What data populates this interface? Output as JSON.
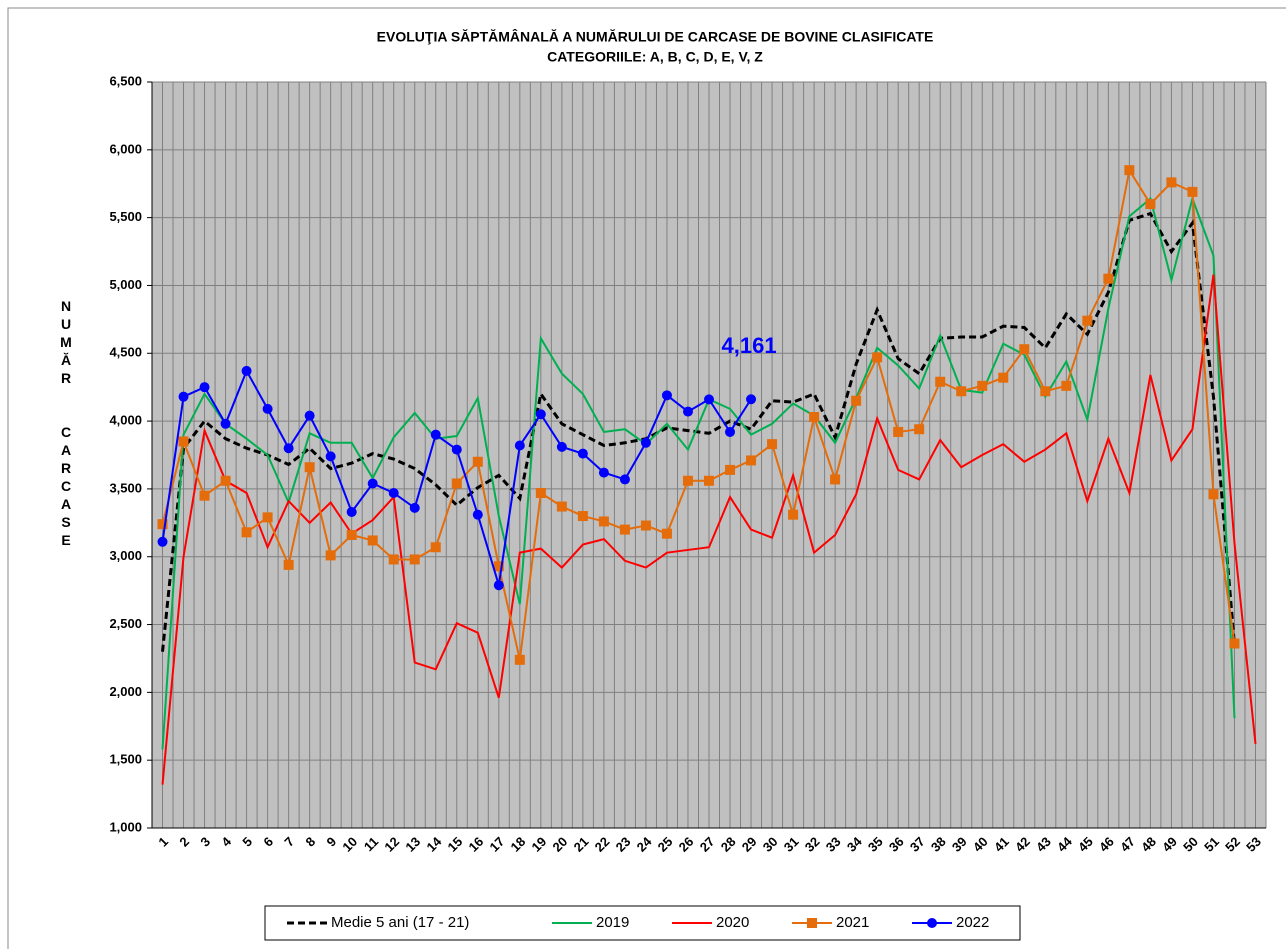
{
  "chart_data": {
    "type": "line",
    "title": "EVOLUŢIA  SĂPTĂMÂNALĂ  A NUMĂRULUI DE CARCASE DE BOVINE  CLASIFICATE",
    "subtitle": "CATEGORIILE:  A,  B,  C,  D,  E,  V,  Z",
    "y_label": "NUMĂR  CARCASE",
    "categories": [
      "1",
      "2",
      "3",
      "4",
      "5",
      "6",
      "7",
      "8",
      "9",
      "10",
      "11",
      "12",
      "13",
      "14",
      "15",
      "16",
      "17",
      "18",
      "19",
      "20",
      "21",
      "22",
      "23",
      "24",
      "25",
      "26",
      "27",
      "28",
      "29",
      "30",
      "31",
      "32",
      "33",
      "34",
      "35",
      "36",
      "37",
      "38",
      "39",
      "40",
      "41",
      "42",
      "43",
      "44",
      "45",
      "46",
      "47",
      "48",
      "49",
      "50",
      "51",
      "52",
      "53"
    ],
    "ylim": [
      1000,
      6500
    ],
    "yticks": [
      {
        "value": 1000,
        "label": "1,000"
      },
      {
        "value": 1500,
        "label": "1,500"
      },
      {
        "value": 2000,
        "label": "2,000"
      },
      {
        "value": 2500,
        "label": "2,500"
      },
      {
        "value": 3000,
        "label": "3,000"
      },
      {
        "value": 3500,
        "label": "3,500"
      },
      {
        "value": 4000,
        "label": "4,000"
      },
      {
        "value": 4500,
        "label": "4,500"
      },
      {
        "value": 5000,
        "label": "5,000"
      },
      {
        "value": 5500,
        "label": "5,500"
      },
      {
        "value": 6000,
        "label": "6,000"
      },
      {
        "value": 6500,
        "label": "6,500"
      }
    ],
    "grid": true,
    "legend": "bottom",
    "series": [
      {
        "name": "Medie 5 ani (17 - 21)",
        "color": "#000000",
        "style": "dashed",
        "marker": "none",
        "values": [
          2300,
          3800,
          4000,
          3870,
          3800,
          3750,
          3680,
          3800,
          3650,
          3690,
          3760,
          3720,
          3650,
          3530,
          3380,
          3510,
          3600,
          3430,
          4200,
          3980,
          3900,
          3820,
          3840,
          3870,
          3950,
          3930,
          3910,
          4000,
          3940,
          4150,
          4140,
          4200,
          3880,
          4420,
          4820,
          4460,
          4350,
          4610,
          4620,
          4620,
          4700,
          4690,
          4540,
          4790,
          4640,
          4950,
          5480,
          5530,
          5250,
          5460,
          4180,
          2350,
          null
        ]
      },
      {
        "name": "2019",
        "color": "#00b050",
        "style": "solid",
        "marker": "none",
        "values": [
          1580,
          3900,
          4200,
          3980,
          3870,
          3750,
          3400,
          3910,
          3840,
          3840,
          3580,
          3880,
          4060,
          3870,
          3890,
          4170,
          3300,
          2650,
          4610,
          4350,
          4200,
          3920,
          3940,
          3830,
          3980,
          3790,
          4160,
          4090,
          3900,
          3980,
          4130,
          4040,
          3840,
          4170,
          4540,
          4410,
          4240,
          4630,
          4230,
          4210,
          4570,
          4490,
          4180,
          4440,
          4010,
          4830,
          5510,
          5640,
          5040,
          5640,
          5220,
          1810,
          null
        ]
      },
      {
        "name": "2020",
        "color": "#ff0000",
        "style": "solid",
        "marker": "none",
        "values": [
          1320,
          3000,
          3930,
          3560,
          3470,
          3070,
          3410,
          3250,
          3400,
          3170,
          3270,
          3440,
          2220,
          2170,
          2510,
          2440,
          1960,
          3030,
          3060,
          2920,
          3090,
          3130,
          2970,
          2920,
          3030,
          3050,
          3070,
          3440,
          3200,
          3140,
          3600,
          3030,
          3160,
          3460,
          4020,
          3640,
          3570,
          3860,
          3660,
          3750,
          3830,
          3700,
          3790,
          3910,
          3410,
          3870,
          3470,
          4340,
          3710,
          3940,
          5080,
          3100,
          1620
        ]
      },
      {
        "name": "2021",
        "color": "#e46c0a",
        "style": "solid",
        "marker": "square",
        "values": [
          3240,
          3850,
          3450,
          3560,
          3180,
          3290,
          2940,
          3660,
          3010,
          3160,
          3120,
          2980,
          2980,
          3070,
          3540,
          3700,
          2930,
          2240,
          3470,
          3370,
          3300,
          3260,
          3200,
          3230,
          3170,
          3560,
          3560,
          3640,
          3710,
          3830,
          3310,
          4030,
          3570,
          4150,
          4470,
          3920,
          3940,
          4290,
          4220,
          4260,
          4320,
          4530,
          4220,
          4260,
          4740,
          5050,
          5850,
          5600,
          5760,
          5690,
          3460,
          2360,
          null
        ]
      },
      {
        "name": "2022",
        "color": "#0000ff",
        "style": "solid",
        "marker": "circle",
        "values": [
          3110,
          4180,
          4250,
          3980,
          4370,
          4090,
          3800,
          4040,
          3740,
          3330,
          3540,
          3470,
          3360,
          3900,
          3790,
          3310,
          2790,
          3820,
          4050,
          3810,
          3760,
          3620,
          3570,
          3840,
          4190,
          4070,
          4160,
          3920,
          4161,
          null,
          null,
          null,
          null,
          null,
          null,
          null,
          null,
          null,
          null,
          null,
          null,
          null,
          null,
          null,
          null,
          null,
          null,
          null,
          null,
          null,
          null,
          null,
          null
        ],
        "value_labels": [
          null,
          null,
          null,
          null,
          null,
          null,
          null,
          null,
          null,
          null,
          null,
          null,
          null,
          null,
          null,
          null,
          null,
          null,
          null,
          null,
          null,
          null,
          null,
          null,
          null,
          null,
          null,
          null,
          "4,161",
          null,
          null,
          null,
          null,
          null,
          null,
          null,
          null,
          null,
          null,
          null,
          null,
          null,
          null,
          null,
          null,
          null,
          null,
          null,
          null,
          null,
          null,
          null,
          null
        ]
      }
    ]
  }
}
